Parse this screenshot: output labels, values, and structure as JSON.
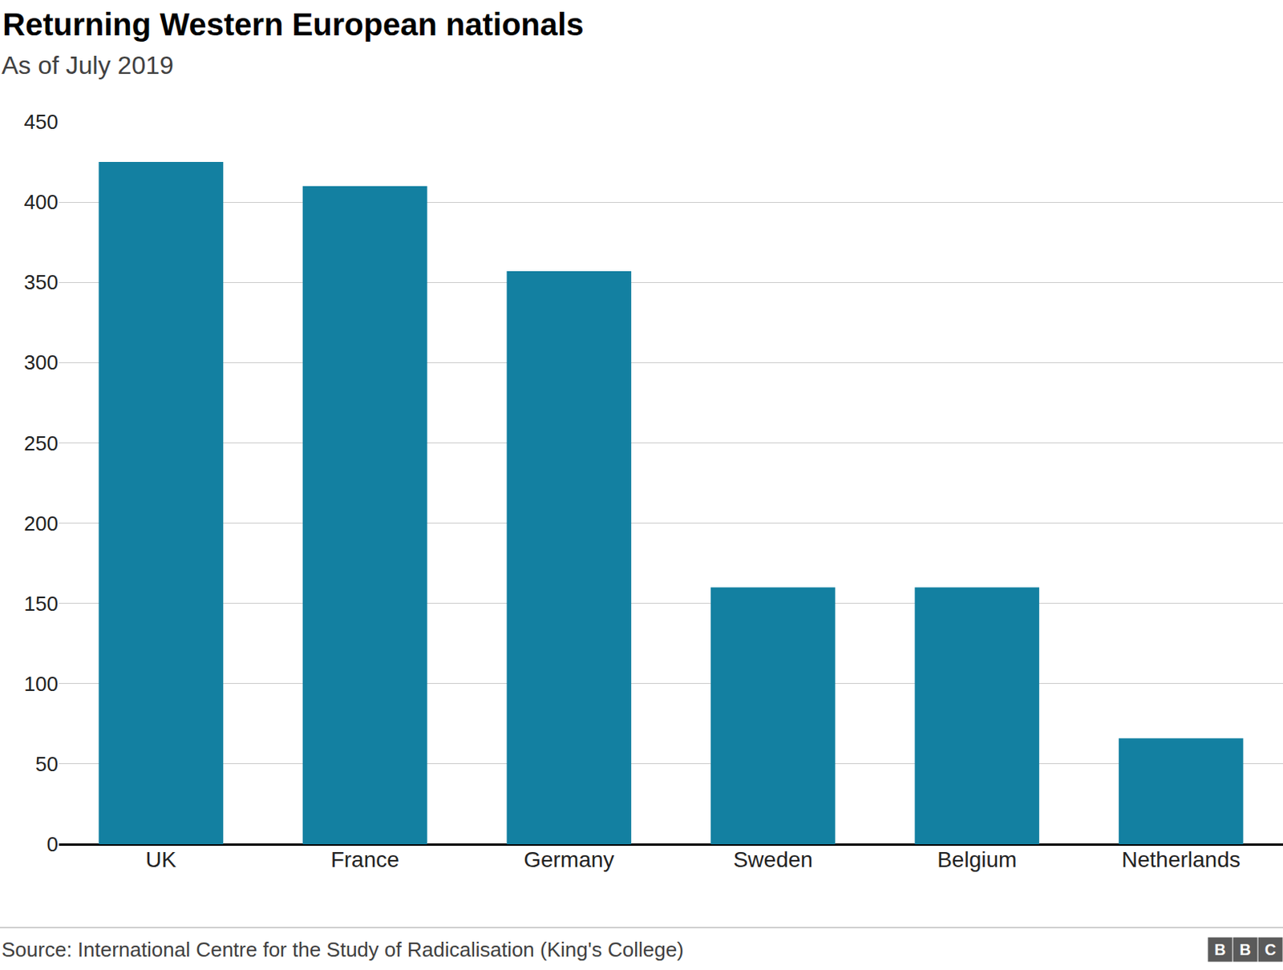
{
  "chart_data": {
    "type": "bar",
    "title": "Returning Western European nationals",
    "subtitle": "As of July 2019",
    "categories": [
      "UK",
      "France",
      "Germany",
      "Sweden",
      "Belgium",
      "Netherlands"
    ],
    "values": [
      425,
      410,
      357,
      160,
      160,
      66
    ],
    "color": "#1380a1",
    "ylim": [
      0,
      450
    ],
    "yticks": [
      0,
      50,
      100,
      150,
      200,
      250,
      300,
      350,
      400,
      450
    ],
    "grid": true,
    "source": "Source: International Centre for the Study of Radicalisation (King's College)",
    "logo": "BBC"
  }
}
